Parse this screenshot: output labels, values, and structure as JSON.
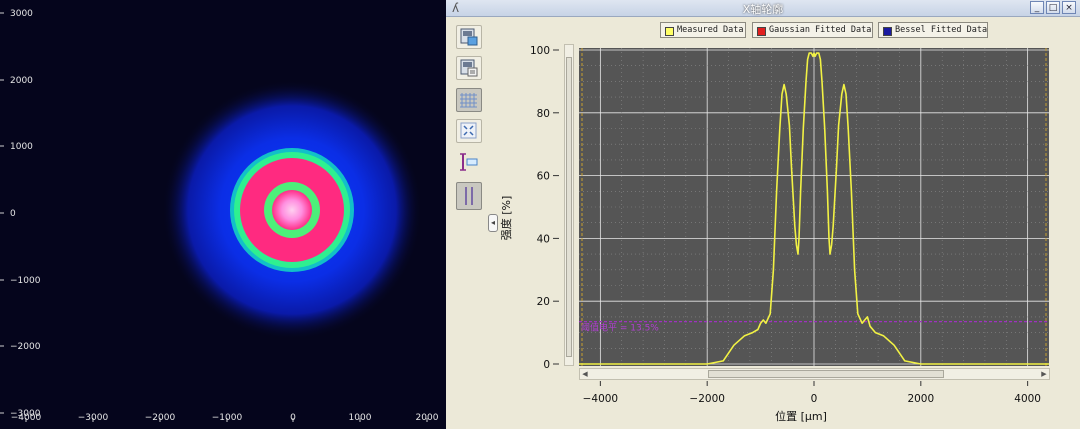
{
  "beam_image": {
    "x_ticks": [
      "−4000",
      "−3000",
      "−2000",
      "−1000",
      "0",
      "1000",
      "2000"
    ],
    "y_ticks": [
      "3000",
      "2000",
      "1000",
      "0",
      "−1000",
      "−2000",
      "−3000"
    ]
  },
  "window": {
    "title": "X轴轮廓",
    "buttons": {
      "minimize": "_",
      "maximize": "□",
      "close": "×"
    }
  },
  "toolbar": {
    "items": [
      {
        "icon": "save-image-icon"
      },
      {
        "icon": "export-data-icon"
      },
      {
        "icon": "grid-icon",
        "active": true
      },
      {
        "icon": "fit-view-icon"
      },
      {
        "icon": "cursor-marker-icon"
      },
      {
        "icon": "dual-cursor-icon",
        "active": true
      }
    ],
    "collapse_label": "◂"
  },
  "legend": {
    "items": [
      {
        "label": "Measured Data",
        "color": "#ffff66"
      },
      {
        "label": "Gaussian Fitted Data",
        "color": "#e02020"
      },
      {
        "label": "Bessel Fitted Data",
        "color": "#1a1aa0"
      }
    ]
  },
  "chart_data": {
    "type": "line",
    "xlabel": "位置 [μm]",
    "ylabel": "强度 [%]",
    "xlim": [
      -4400,
      4400
    ],
    "ylim": [
      0,
      100
    ],
    "x_ticks": [
      -4000,
      -2000,
      0,
      2000,
      4000
    ],
    "x_tick_labels": [
      "−4000",
      "−2000",
      "0",
      "2000",
      "4000"
    ],
    "y_ticks": [
      0,
      20,
      40,
      60,
      80,
      100
    ],
    "grid": true,
    "threshold": {
      "value": 13.5,
      "label": "阈值电平 = 13.5%"
    },
    "series": [
      {
        "name": "Measured Data",
        "color": "#f2f244",
        "x": [
          -4400,
          -2000,
          -1700,
          -1500,
          -1300,
          -1150,
          -1050,
          -1000,
          -950,
          -900,
          -820,
          -760,
          -700,
          -640,
          -600,
          -560,
          -520,
          -460,
          -420,
          -360,
          -330,
          -300,
          -280,
          -250,
          -200,
          -150,
          -120,
          -90,
          -50,
          -20,
          0,
          20,
          50,
          90,
          120,
          150,
          200,
          250,
          280,
          300,
          330,
          360,
          420,
          460,
          520,
          560,
          600,
          640,
          700,
          760,
          820,
          900,
          950,
          1000,
          1050,
          1150,
          1300,
          1500,
          1700,
          2000,
          4400
        ],
        "y": [
          0,
          0,
          1,
          6,
          9,
          10,
          11,
          13,
          14,
          13,
          16,
          30,
          55,
          75,
          86,
          89,
          86,
          76,
          62,
          44,
          38,
          35,
          40,
          55,
          75,
          90,
          97,
          99,
          99,
          98,
          99,
          98,
          99,
          99,
          97,
          90,
          75,
          55,
          40,
          35,
          38,
          44,
          62,
          76,
          86,
          89,
          86,
          75,
          55,
          30,
          16,
          13,
          14,
          15,
          12,
          10,
          9,
          6,
          1,
          0,
          0
        ]
      }
    ]
  }
}
